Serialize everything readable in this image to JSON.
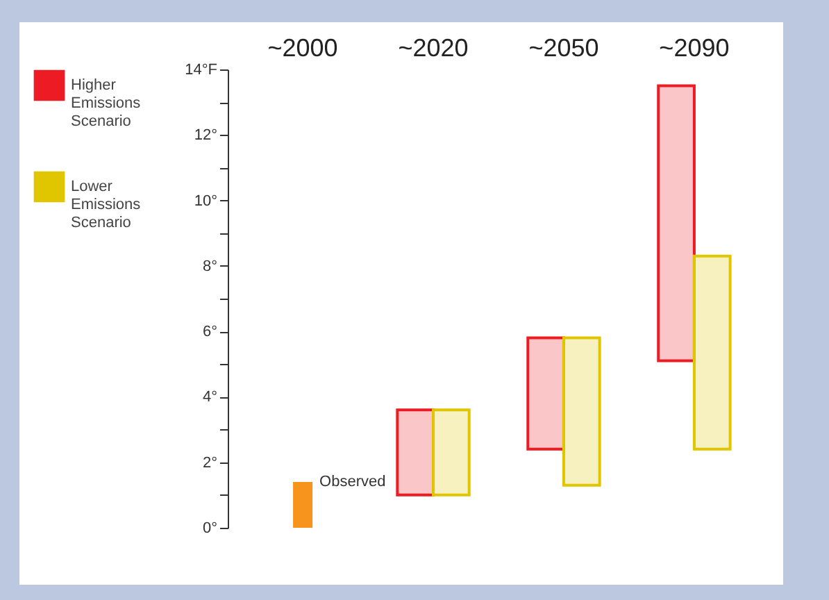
{
  "chart_data": {
    "type": "bar",
    "categories": [
      "~2000",
      "~2020",
      "~2050",
      "~2090"
    ],
    "series": [
      {
        "name": "Higher Emissions Scenario",
        "color": "#ed1c24",
        "values": [
          null,
          2.6,
          3.4,
          8.4
        ],
        "base": [
          null,
          1.0,
          2.4,
          5.1
        ]
      },
      {
        "name": "Lower Emissions Scenario",
        "color": "#dfc600",
        "values": [
          null,
          2.6,
          4.5,
          5.9
        ],
        "base": [
          null,
          1.0,
          1.3,
          2.4
        ]
      },
      {
        "name": "Observed",
        "color": "#f7941d",
        "values": [
          1.4,
          null,
          null,
          null
        ],
        "base": [
          0,
          null,
          null,
          null
        ]
      }
    ],
    "ylim": [
      0,
      14
    ],
    "yticks": [
      {
        "value": 0,
        "label": "0°"
      },
      {
        "value": 1,
        "label": null
      },
      {
        "value": 2,
        "label": "2°"
      },
      {
        "value": 3,
        "label": null
      },
      {
        "value": 4,
        "label": "4°"
      },
      {
        "value": 5,
        "label": null
      },
      {
        "value": 6,
        "label": "6°"
      },
      {
        "value": 7,
        "label": null
      },
      {
        "value": 8,
        "label": "8°"
      },
      {
        "value": 9,
        "label": null
      },
      {
        "value": 10,
        "label": "10°"
      },
      {
        "value": 11,
        "label": null
      },
      {
        "value": 12,
        "label": "12°"
      },
      {
        "value": 13,
        "label": null
      },
      {
        "value": 14,
        "label": "14°F"
      }
    ],
    "grid": false,
    "legend": "top left"
  }
}
